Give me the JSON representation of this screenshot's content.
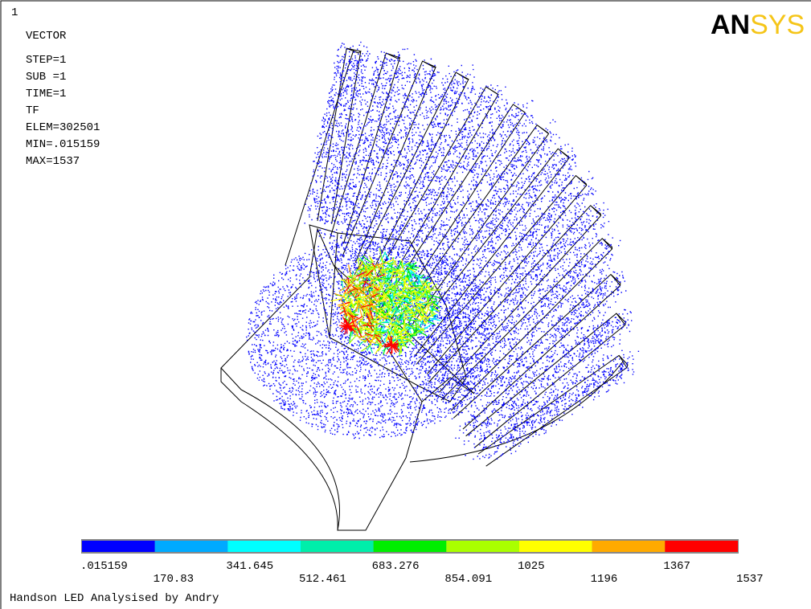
{
  "window_number": "1",
  "plot_type": "VECTOR",
  "info_lines": [
    "STEP=1",
    "SUB =1",
    "TIME=1",
    "TF",
    "ELEM=302501",
    "MIN=.015159",
    "MAX=1537"
  ],
  "logo": {
    "bold": "AN",
    "light": "SYS"
  },
  "legend": {
    "colors": [
      "#0000ff",
      "#00aaff",
      "#00ffff",
      "#00eeaa",
      "#00ee00",
      "#aaff00",
      "#ffff00",
      "#ffaa00",
      "#ff0000"
    ],
    "labels": [
      ".015159",
      "170.83",
      "341.645",
      "512.461",
      "683.276",
      "854.091",
      "1025",
      "1196",
      "1367",
      "1537"
    ]
  },
  "footer": "Handson LED Analysised by Andry"
}
